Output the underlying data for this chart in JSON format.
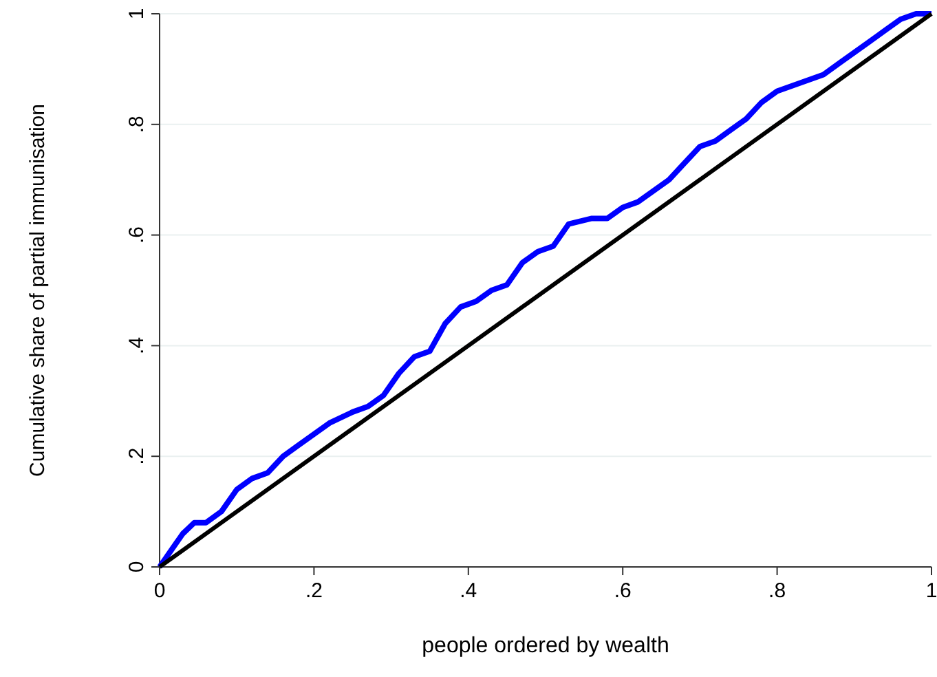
{
  "chart_data": {
    "type": "line",
    "xlabel": "people ordered by wealth",
    "ylabel": "Cumulative share of partial immunisation",
    "xlim": [
      0,
      1
    ],
    "ylim": [
      0,
      1
    ],
    "xticks": [
      0,
      {
        "value": 0.2,
        "label": ".2"
      },
      {
        "value": 0.4,
        "label": ".4"
      },
      {
        "value": 0.6,
        "label": ".6"
      },
      {
        "value": 0.8,
        "label": ".8"
      },
      1
    ],
    "yticks": [
      0,
      {
        "value": 0.2,
        "label": ".2"
      },
      {
        "value": 0.4,
        "label": ".4"
      },
      {
        "value": 0.6,
        "label": ".6"
      },
      {
        "value": 0.8,
        "label": ".8"
      },
      1
    ],
    "grid": "y",
    "series": [
      {
        "color": "#0000ff",
        "x": [
          0,
          0.015,
          0.03,
          0.045,
          0.06,
          0.08,
          0.1,
          0.12,
          0.14,
          0.16,
          0.18,
          0.2,
          0.22,
          0.25,
          0.27,
          0.29,
          0.31,
          0.33,
          0.35,
          0.37,
          0.39,
          0.41,
          0.43,
          0.45,
          0.47,
          0.49,
          0.51,
          0.53,
          0.56,
          0.58,
          0.6,
          0.62,
          0.64,
          0.66,
          0.68,
          0.7,
          0.72,
          0.74,
          0.76,
          0.78,
          0.8,
          0.82,
          0.84,
          0.86,
          0.88,
          0.9,
          0.92,
          0.94,
          0.96,
          0.98,
          1
        ],
        "values": [
          0,
          0.03,
          0.06,
          0.08,
          0.08,
          0.1,
          0.14,
          0.16,
          0.17,
          0.2,
          0.22,
          0.24,
          0.26,
          0.28,
          0.29,
          0.31,
          0.35,
          0.38,
          0.39,
          0.44,
          0.47,
          0.48,
          0.5,
          0.51,
          0.55,
          0.57,
          0.58,
          0.62,
          0.63,
          0.63,
          0.65,
          0.66,
          0.68,
          0.7,
          0.73,
          0.76,
          0.77,
          0.79,
          0.81,
          0.84,
          0.86,
          0.87,
          0.88,
          0.89,
          0.91,
          0.93,
          0.95,
          0.97,
          0.99,
          1,
          1
        ]
      },
      {
        "color": "#000000",
        "x": [
          0,
          1
        ],
        "values": [
          0,
          1
        ]
      }
    ]
  }
}
